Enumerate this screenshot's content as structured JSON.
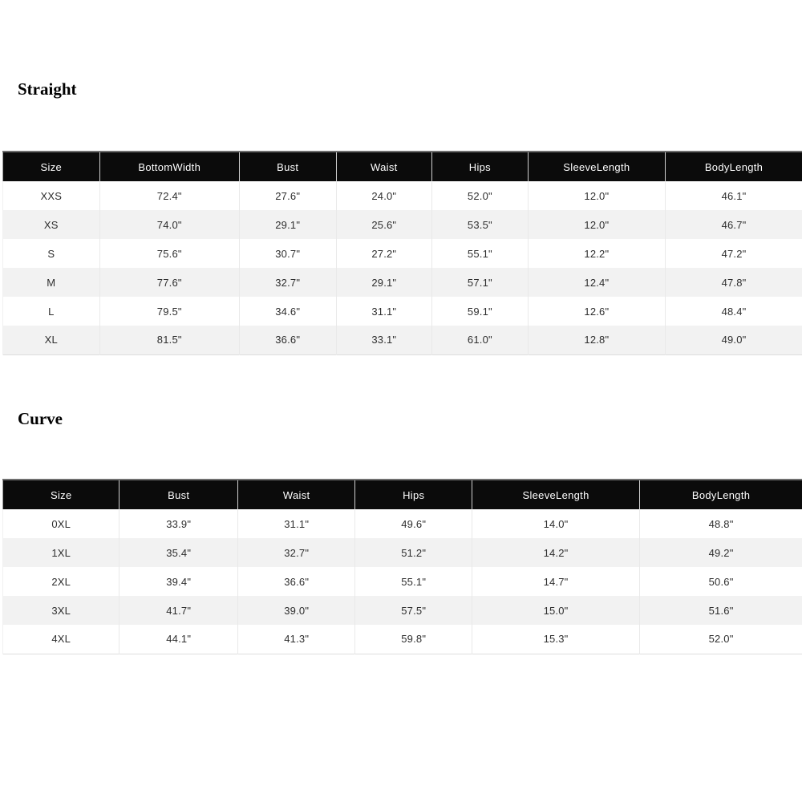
{
  "page": {
    "background_color": "#ffffff"
  },
  "colors": {
    "header_bg": "#0b0b0b",
    "header_text": "#ffffff",
    "row_bg": "#ffffff",
    "row_alt_bg": "#f2f2f2",
    "cell_text": "#2e2e2e",
    "title_text": "#000000",
    "table_top_border": "#6e6e6e"
  },
  "sections": [
    {
      "title": "Straight",
      "table": {
        "headers": [
          "Size",
          "BottomWidth",
          "Bust",
          "Waist",
          "Hips",
          "SleeveLength",
          "BodyLength"
        ],
        "rows": [
          [
            "XXS",
            "72.4\"",
            "27.6\"",
            "24.0\"",
            "52.0\"",
            "12.0\"",
            "46.1\""
          ],
          [
            "XS",
            "74.0\"",
            "29.1\"",
            "25.6\"",
            "53.5\"",
            "12.0\"",
            "46.7\""
          ],
          [
            "S",
            "75.6\"",
            "30.7\"",
            "27.2\"",
            "55.1\"",
            "12.2\"",
            "47.2\""
          ],
          [
            "M",
            "77.6\"",
            "32.7\"",
            "29.1\"",
            "57.1\"",
            "12.4\"",
            "47.8\""
          ],
          [
            "L",
            "79.5\"",
            "34.6\"",
            "31.1\"",
            "59.1\"",
            "12.6\"",
            "48.4\""
          ],
          [
            "XL",
            "81.5\"",
            "36.6\"",
            "33.1\"",
            "61.0\"",
            "12.8\"",
            "49.0\""
          ]
        ]
      }
    },
    {
      "title": "Curve",
      "table": {
        "headers": [
          "Size",
          "Bust",
          "Waist",
          "Hips",
          "SleeveLength",
          "BodyLength"
        ],
        "rows": [
          [
            "0XL",
            "33.9\"",
            "31.1\"",
            "49.6\"",
            "14.0\"",
            "48.8\""
          ],
          [
            "1XL",
            "35.4\"",
            "32.7\"",
            "51.2\"",
            "14.2\"",
            "49.2\""
          ],
          [
            "2XL",
            "39.4\"",
            "36.6\"",
            "55.1\"",
            "14.7\"",
            "50.6\""
          ],
          [
            "3XL",
            "41.7\"",
            "39.0\"",
            "57.5\"",
            "15.0\"",
            "51.6\""
          ],
          [
            "4XL",
            "44.1\"",
            "41.3\"",
            "59.8\"",
            "15.3\"",
            "52.0\""
          ]
        ]
      }
    }
  ]
}
